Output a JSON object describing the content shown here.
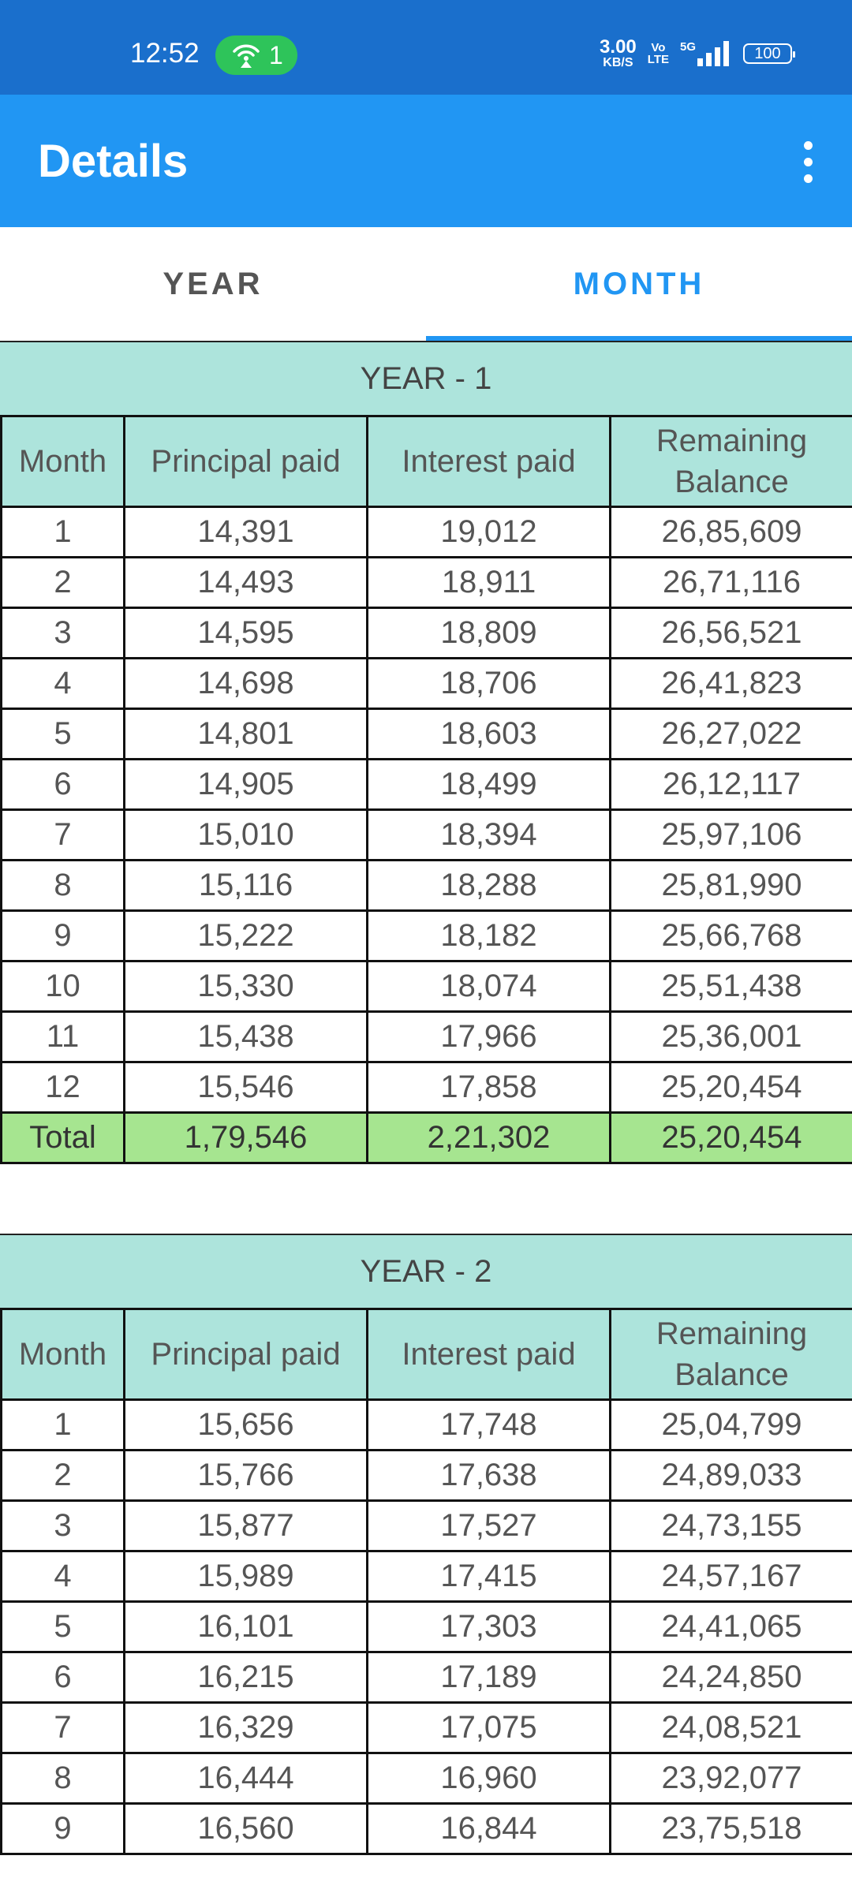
{
  "status_bar": {
    "time": "12:52",
    "hotspot_count": "1",
    "net_speed_value": "3.00",
    "net_speed_unit": "KB/S",
    "volte_top": "Vo",
    "volte_bottom": "LTE",
    "network": "5G",
    "battery": "100",
    "icons": [
      "hotspot-icon",
      "signal-icon",
      "battery-icon"
    ]
  },
  "app_bar": {
    "title": "Details",
    "menu_icon": "more-vert-icon",
    "color": "#2196f3"
  },
  "tabs": [
    {
      "label": "YEAR",
      "active": false
    },
    {
      "label": "MONTH",
      "active": true
    }
  ],
  "columns": [
    "Month",
    "Principal paid",
    "Interest paid",
    "Remaining Balance"
  ],
  "years": [
    {
      "title": "YEAR - 1",
      "rows": [
        [
          "1",
          "14,391",
          "19,012",
          "26,85,609"
        ],
        [
          "2",
          "14,493",
          "18,911",
          "26,71,116"
        ],
        [
          "3",
          "14,595",
          "18,809",
          "26,56,521"
        ],
        [
          "4",
          "14,698",
          "18,706",
          "26,41,823"
        ],
        [
          "5",
          "14,801",
          "18,603",
          "26,27,022"
        ],
        [
          "6",
          "14,905",
          "18,499",
          "26,12,117"
        ],
        [
          "7",
          "15,010",
          "18,394",
          "25,97,106"
        ],
        [
          "8",
          "15,116",
          "18,288",
          "25,81,990"
        ],
        [
          "9",
          "15,222",
          "18,182",
          "25,66,768"
        ],
        [
          "10",
          "15,330",
          "18,074",
          "25,51,438"
        ],
        [
          "11",
          "15,438",
          "17,966",
          "25,36,001"
        ],
        [
          "12",
          "15,546",
          "17,858",
          "25,20,454"
        ]
      ],
      "total": [
        "Total",
        "1,79,546",
        "2,21,302",
        "25,20,454"
      ]
    },
    {
      "title": "YEAR - 2",
      "rows": [
        [
          "1",
          "15,656",
          "17,748",
          "25,04,799"
        ],
        [
          "2",
          "15,766",
          "17,638",
          "24,89,033"
        ],
        [
          "3",
          "15,877",
          "17,527",
          "24,73,155"
        ],
        [
          "4",
          "15,989",
          "17,415",
          "24,57,167"
        ],
        [
          "5",
          "16,101",
          "17,303",
          "24,41,065"
        ],
        [
          "6",
          "16,215",
          "17,189",
          "24,24,850"
        ],
        [
          "7",
          "16,329",
          "17,075",
          "24,08,521"
        ],
        [
          "8",
          "16,444",
          "16,960",
          "23,92,077"
        ],
        [
          "9",
          "16,560",
          "16,844",
          "23,75,518"
        ]
      ]
    }
  ]
}
